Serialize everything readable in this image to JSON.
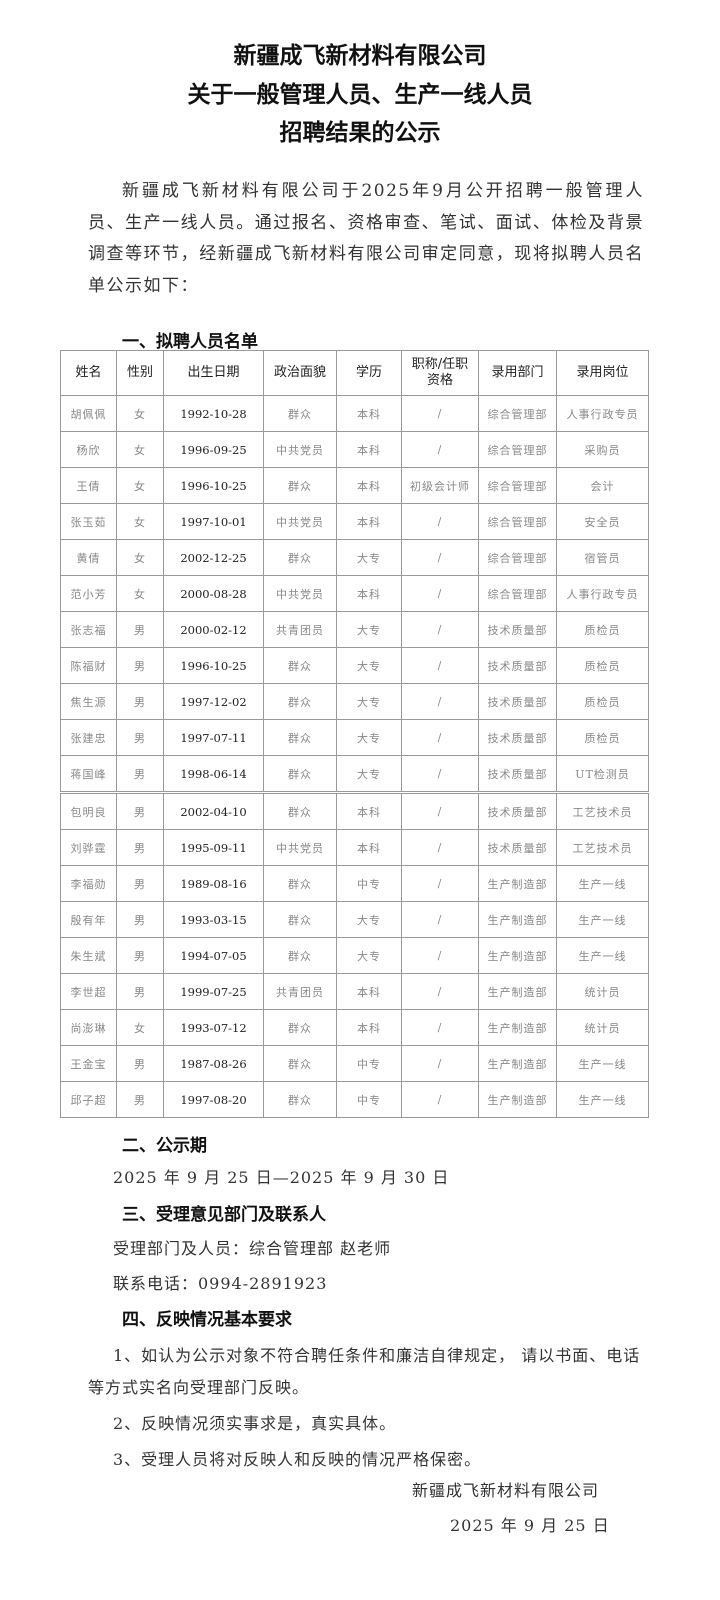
{
  "title": [
    "新疆成飞新材料有限公司",
    "关于一般管理人员、生产一线人员",
    "招聘结果的公示"
  ],
  "intro": "新疆成飞新材料有限公司于2025年9月公开招聘一般管理人员、生产一线人员。通过报名、资格审查、笔试、面试、体检及背景调查等环节，经新疆成飞新材料有限公司审定同意，现将拟聘人员名单公示如下：",
  "section1": "一、拟聘人员名单",
  "table": {
    "headers": [
      "姓名",
      "性别",
      "出生日期",
      "政治面貌",
      "学历",
      "职称/任职资格",
      "录用部门",
      "录用岗位"
    ],
    "rows": [
      [
        "胡佩佩",
        "女",
        "1992-10-28",
        "群众",
        "本科",
        "/",
        "综合管理部",
        "人事行政专员"
      ],
      [
        "杨欣",
        "女",
        "1996-09-25",
        "中共党员",
        "本科",
        "/",
        "综合管理部",
        "采购员"
      ],
      [
        "王倩",
        "女",
        "1996-10-25",
        "群众",
        "本科",
        "初级会计师",
        "综合管理部",
        "会计"
      ],
      [
        "张玉茹",
        "女",
        "1997-10-01",
        "中共党员",
        "本科",
        "/",
        "综合管理部",
        "安全员"
      ],
      [
        "黄倩",
        "女",
        "2002-12-25",
        "群众",
        "大专",
        "/",
        "综合管理部",
        "宿管员"
      ],
      [
        "范小芳",
        "女",
        "2000-08-28",
        "中共党员",
        "本科",
        "/",
        "综合管理部",
        "人事行政专员"
      ],
      [
        "张志福",
        "男",
        "2000-02-12",
        "共青团员",
        "大专",
        "/",
        "技术质量部",
        "质检员"
      ],
      [
        "陈福财",
        "男",
        "1996-10-25",
        "群众",
        "大专",
        "/",
        "技术质量部",
        "质检员"
      ],
      [
        "焦生源",
        "男",
        "1997-12-02",
        "群众",
        "大专",
        "/",
        "技术质量部",
        "质检员"
      ],
      [
        "张建忠",
        "男",
        "1997-07-11",
        "群众",
        "大专",
        "/",
        "技术质量部",
        "质检员"
      ],
      [
        "蒋国峰",
        "男",
        "1998-06-14",
        "群众",
        "大专",
        "/",
        "技术质量部",
        "UT检测员"
      ]
    ],
    "rows2": [
      [
        "包明良",
        "男",
        "2002-04-10",
        "群众",
        "本科",
        "/",
        "技术质量部",
        "工艺技术员"
      ],
      [
        "刘骅霆",
        "男",
        "1995-09-11",
        "中共党员",
        "本科",
        "/",
        "技术质量部",
        "工艺技术员"
      ],
      [
        "李福勋",
        "男",
        "1989-08-16",
        "群众",
        "中专",
        "/",
        "生产制造部",
        "生产一线"
      ],
      [
        "殷有年",
        "男",
        "1993-03-15",
        "群众",
        "大专",
        "/",
        "生产制造部",
        "生产一线"
      ],
      [
        "朱生斌",
        "男",
        "1994-07-05",
        "群众",
        "大专",
        "/",
        "生产制造部",
        "生产一线"
      ],
      [
        "李世超",
        "男",
        "1999-07-25",
        "共青团员",
        "本科",
        "/",
        "生产制造部",
        "统计员"
      ],
      [
        "尚澎琳",
        "女",
        "1993-07-12",
        "群众",
        "本科",
        "/",
        "生产制造部",
        "统计员"
      ],
      [
        "王金宝",
        "男",
        "1987-08-26",
        "群众",
        "中专",
        "/",
        "生产制造部",
        "生产一线"
      ],
      [
        "邱子超",
        "男",
        "1997-08-20",
        "群众",
        "中专",
        "/",
        "生产制造部",
        "生产一线"
      ]
    ]
  },
  "section2": "二、公示期",
  "period": "2025 年 9 月 25 日—2025 年 9 月 30 日",
  "section3": "三、受理意见部门及联系人",
  "contact_dept": "受理部门及人员：综合管理部  赵老师",
  "contact_phone": "联系电话：0994-2891923",
  "section4": "四、反映情况基本要求",
  "req1": "1、如认为公示对象不符合聘任条件和廉洁自律规定， 请以书面、电话等方式实名向受理部门反映。",
  "req2": "2、反映情况须实事求是，真实具体。",
  "req3": "3、受理人员将对反映人和反映的情况严格保密。",
  "signature": "新疆成飞新材料有限公司",
  "date": "2025 年 9 月 25 日"
}
